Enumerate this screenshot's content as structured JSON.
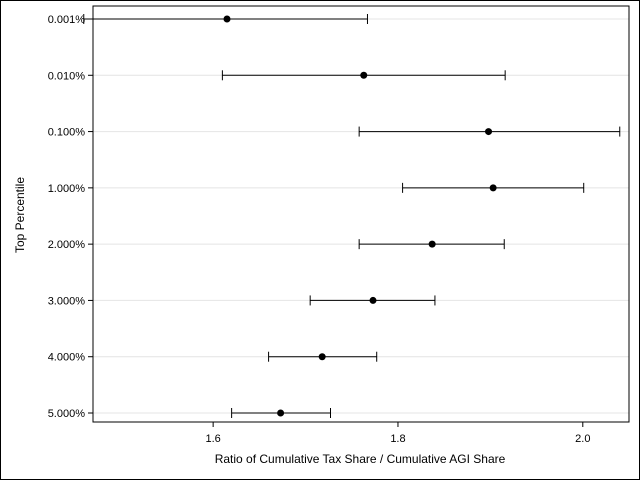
{
  "chart_data": {
    "type": "scatter",
    "subtype": "error-bar",
    "title": "",
    "xlabel": "Ratio of Cumulative Tax Share / Cumulative AGI Share",
    "ylabel": "Top Percentile",
    "xlim": [
      1.47,
      2.05
    ],
    "x_ticks": [
      1.6,
      1.8,
      2.0
    ],
    "x_tick_labels": [
      "1.6",
      "1.8",
      "2.0"
    ],
    "grid": "horizontal",
    "legend": "none",
    "marker_color": "#000000",
    "points": [
      {
        "category": "0.001%",
        "estimate": 1.615,
        "lower": 1.46,
        "upper": 1.767
      },
      {
        "category": "0.010%",
        "estimate": 1.763,
        "lower": 1.61,
        "upper": 1.916
      },
      {
        "category": "0.100%",
        "estimate": 1.898,
        "lower": 1.758,
        "upper": 2.04
      },
      {
        "category": "1.000%",
        "estimate": 1.903,
        "lower": 1.805,
        "upper": 2.001
      },
      {
        "category": "2.000%",
        "estimate": 1.837,
        "lower": 1.758,
        "upper": 1.915
      },
      {
        "category": "3.000%",
        "estimate": 1.773,
        "lower": 1.705,
        "upper": 1.84
      },
      {
        "category": "4.000%",
        "estimate": 1.718,
        "lower": 1.66,
        "upper": 1.777
      },
      {
        "category": "5.000%",
        "estimate": 1.673,
        "lower": 1.62,
        "upper": 1.727
      }
    ]
  }
}
